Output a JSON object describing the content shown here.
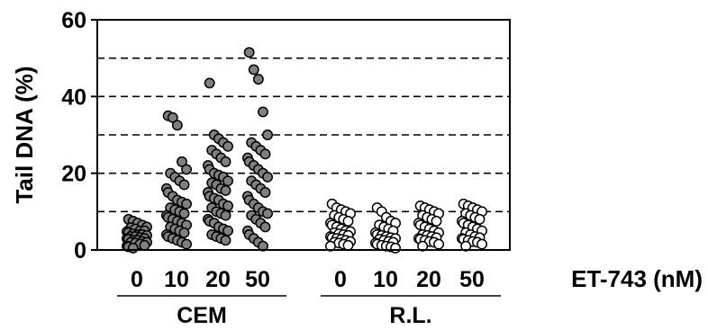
{
  "chart_data": {
    "type": "scatter",
    "title": "",
    "ylabel": "Tail DNA (%)",
    "xlabel": "ET-743 (nM)",
    "ylim": [
      0,
      60
    ],
    "yticks": [
      0,
      20,
      40,
      60
    ],
    "grid_lines_y": [
      10,
      20,
      30,
      40,
      50
    ],
    "categories": [
      "0",
      "10",
      "20",
      "50",
      "0",
      "10",
      "20",
      "50"
    ],
    "groups": [
      {
        "name": "CEM",
        "categories": [
          0,
          1,
          2,
          3
        ]
      },
      {
        "name": "R.L.",
        "categories": [
          4,
          5,
          6,
          7
        ]
      }
    ],
    "series": [
      {
        "group": "CEM",
        "dose": "0",
        "fill": "#808080",
        "values": [
          8,
          7.5,
          7,
          6.5,
          6,
          5.8,
          5.5,
          5,
          5,
          4.8,
          4.5,
          4.2,
          4,
          4,
          3.8,
          3.5,
          3.5,
          3.2,
          3,
          3,
          2.8,
          2.5,
          2.5,
          2.2,
          2,
          2,
          1.8,
          1.5,
          1.2,
          1,
          0.8,
          0.5
        ]
      },
      {
        "group": "CEM",
        "dose": "10",
        "fill": "#808080",
        "values": [
          35,
          34.5,
          32.5,
          23,
          21,
          20,
          19,
          18,
          17,
          16,
          15,
          14,
          13,
          12.5,
          12,
          11,
          10.5,
          10,
          9.5,
          9,
          8.5,
          8,
          7.5,
          7,
          6.5,
          6,
          5.5,
          5,
          4.5,
          4,
          3.5,
          3,
          2.5,
          2,
          1.5
        ]
      },
      {
        "group": "CEM",
        "dose": "20",
        "fill": "#808080",
        "values": [
          43.5,
          30,
          29,
          28,
          27,
          26,
          25,
          24,
          23,
          22,
          21,
          20,
          19.5,
          19,
          18,
          17.5,
          17,
          16,
          15.5,
          15,
          14,
          13.5,
          13,
          12,
          11.5,
          11,
          10,
          9.5,
          9,
          8,
          7.5,
          7,
          6,
          5.5,
          5,
          4,
          3.5,
          3,
          2.5
        ]
      },
      {
        "group": "CEM",
        "dose": "50",
        "fill": "#808080",
        "values": [
          51.5,
          47,
          44.5,
          36,
          30,
          28,
          27,
          26,
          25,
          24,
          23,
          22,
          21,
          20,
          19,
          18,
          17,
          16,
          15,
          14,
          13,
          12,
          11,
          10,
          9.5,
          9,
          8,
          7,
          6,
          5,
          4,
          3,
          2,
          1
        ]
      },
      {
        "group": "R.L.",
        "dose": "0",
        "fill": "#ffffff",
        "values": [
          12,
          11,
          10.5,
          10,
          9.5,
          9,
          8.5,
          8,
          7.5,
          7,
          6.5,
          6,
          5.5,
          5,
          4.8,
          4.5,
          4.2,
          4,
          3.8,
          3.5,
          3.2,
          3,
          2.8,
          2.5,
          2.2,
          2,
          1.8,
          1.5,
          1.2,
          1
        ]
      },
      {
        "group": "R.L.",
        "dose": "10",
        "fill": "#ffffff",
        "values": [
          11,
          10,
          8.5,
          7.5,
          7,
          6.5,
          6,
          5.5,
          5,
          4.5,
          4,
          3.8,
          3.5,
          3.2,
          3,
          2.8,
          2.5,
          2.2,
          2,
          1.8,
          1.5,
          1.2,
          1,
          0.8,
          0.5
        ]
      },
      {
        "group": "R.L.",
        "dose": "20",
        "fill": "#ffffff",
        "values": [
          11.5,
          11,
          10.5,
          10,
          9.5,
          9,
          8.5,
          8,
          7.5,
          7,
          6.5,
          6,
          5.5,
          5,
          4.5,
          4,
          3.8,
          3.5,
          3.2,
          3,
          2.8,
          2.5,
          2.2,
          2,
          1.5,
          1
        ]
      },
      {
        "group": "R.L.",
        "dose": "50",
        "fill": "#ffffff",
        "values": [
          12,
          11.5,
          11,
          10.5,
          10,
          9.5,
          9,
          8.5,
          8,
          7.5,
          7,
          6.5,
          6,
          5.5,
          5,
          4.5,
          4,
          3.5,
          3.2,
          3,
          2.8,
          2.5,
          2.2,
          2,
          1.5,
          1
        ]
      }
    ]
  }
}
